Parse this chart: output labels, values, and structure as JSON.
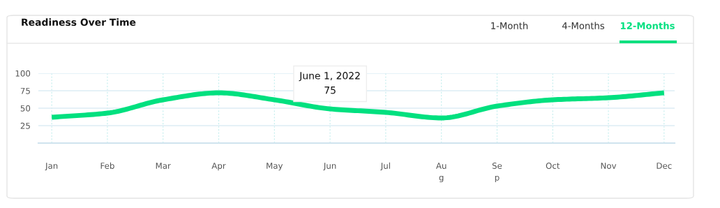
{
  "chart_data": {
    "type": "line",
    "title": "Readiness Over Time",
    "categories": [
      "Jan",
      "Feb",
      "Mar",
      "Apr",
      "May",
      "Jun",
      "Jul",
      "Au\ng",
      "Se\np",
      "Oct",
      "Nov",
      "Dec"
    ],
    "series": [
      {
        "color": "#00e07f",
        "values": [
          37,
          43,
          62,
          72,
          62,
          49,
          44,
          36,
          53,
          62,
          65,
          72
        ]
      }
    ],
    "ylim": [
      0,
      100
    ],
    "yticks": [
      {
        "value": 0,
        "label": null
      },
      25,
      50,
      75,
      100
    ],
    "grid": true,
    "marker": "none",
    "line_style": "solid",
    "annotations": [
      "June 1, 2022",
      "75",
      "1-Month",
      "4-Months",
      "12-Months"
    ]
  }
}
